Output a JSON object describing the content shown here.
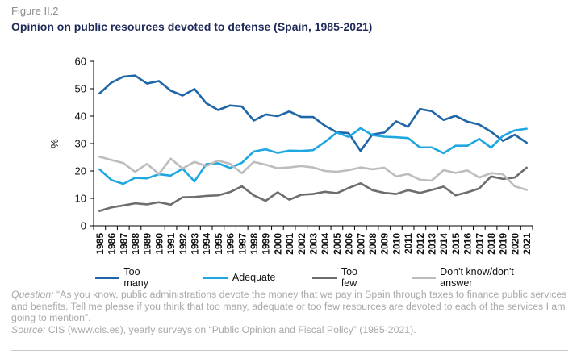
{
  "figure": {
    "label": "Figure II.2",
    "title": "Opinion on public resources devoted to defense (Spain, 1985-2021)"
  },
  "note": {
    "lead": "Question:",
    "text": " “As you know, public administrations devote the money that we pay in Spain through taxes to finance public services and benefits. Tell me please if you think that too many, adequate or too few resources are devoted to each of the services I am going to mention”."
  },
  "source": {
    "lead": "Source:",
    "text": " CIS (www.cis.es), yearly surveys  on “Public Opinion and Fiscal Policy” (1985-2021)."
  },
  "chart_data": {
    "type": "line",
    "title": "",
    "xlabel": "",
    "ylabel": "%",
    "ylim": [
      0,
      60
    ],
    "yticks": [
      0,
      10,
      20,
      30,
      40,
      50,
      60
    ],
    "grid": false,
    "legend_position": "bottom",
    "x": [
      "1985",
      "1986",
      "1987",
      "1988",
      "1989",
      "1990",
      "1991",
      "1992",
      "1993",
      "1994",
      "1995",
      "1996",
      "1997",
      "1998",
      "1999",
      "2000",
      "2001",
      "2002",
      "2003",
      "2004",
      "2005",
      "2006",
      "2007",
      "2008",
      "2009",
      "2010",
      "2011",
      "2012",
      "2013",
      "2014",
      "2015",
      "2016",
      "2017",
      "2018",
      "2019",
      "2020",
      "2021"
    ],
    "series": [
      {
        "name": "Too many",
        "color": "#1f66a8",
        "values": [
          48.3,
          52.2,
          54.4,
          54.8,
          51.9,
          52.8,
          49.3,
          47.5,
          49.9,
          44.7,
          42.2,
          43.9,
          43.5,
          38.4,
          40.6,
          40.0,
          41.7,
          39.7,
          39.7,
          36.5,
          34.1,
          33.8,
          27.3,
          33.3,
          34.0,
          38.1,
          36.1,
          42.6,
          41.8,
          38.6,
          40.1,
          38.0,
          36.9,
          34.3,
          31.0,
          33.2,
          30.3
        ]
      },
      {
        "name": "Adequate",
        "color": "#1ea7e1",
        "values": [
          20.6,
          16.7,
          15.3,
          17.5,
          17.3,
          18.8,
          18.3,
          20.8,
          16.2,
          22.5,
          22.8,
          21.1,
          23.0,
          27.1,
          27.9,
          26.6,
          27.4,
          27.3,
          27.6,
          30.6,
          34.0,
          32.4,
          35.6,
          33.1,
          32.5,
          32.3,
          32.0,
          28.6,
          28.6,
          26.5,
          29.2,
          29.2,
          31.7,
          28.5,
          32.8,
          34.8,
          35.4
        ]
      },
      {
        "name": "Too few",
        "color": "#6d6d6d",
        "values": [
          5.4,
          6.7,
          7.4,
          8.2,
          7.8,
          8.6,
          7.7,
          10.4,
          10.5,
          10.9,
          11.1,
          12.3,
          14.4,
          11.1,
          9.1,
          12.2,
          9.5,
          11.3,
          11.6,
          12.4,
          11.9,
          13.8,
          15.5,
          13.0,
          12.0,
          11.6,
          13.0,
          12.0,
          13.1,
          14.3,
          11.1,
          12.2,
          13.6,
          18.0,
          17.1,
          17.6,
          21.2
        ]
      },
      {
        "name": "Don't know/don't answer",
        "color": "#bdbdbd",
        "values": [
          25.2,
          24.0,
          22.9,
          19.7,
          22.6,
          18.9,
          24.5,
          20.9,
          23.3,
          21.8,
          23.8,
          22.6,
          19.2,
          23.3,
          22.3,
          21.0,
          21.3,
          21.8,
          21.3,
          20.0,
          19.7,
          20.3,
          21.3,
          20.6,
          21.2,
          18.0,
          18.9,
          16.8,
          16.5,
          20.3,
          19.3,
          20.2,
          17.6,
          19.2,
          18.8,
          14.4,
          13.1
        ]
      }
    ]
  }
}
